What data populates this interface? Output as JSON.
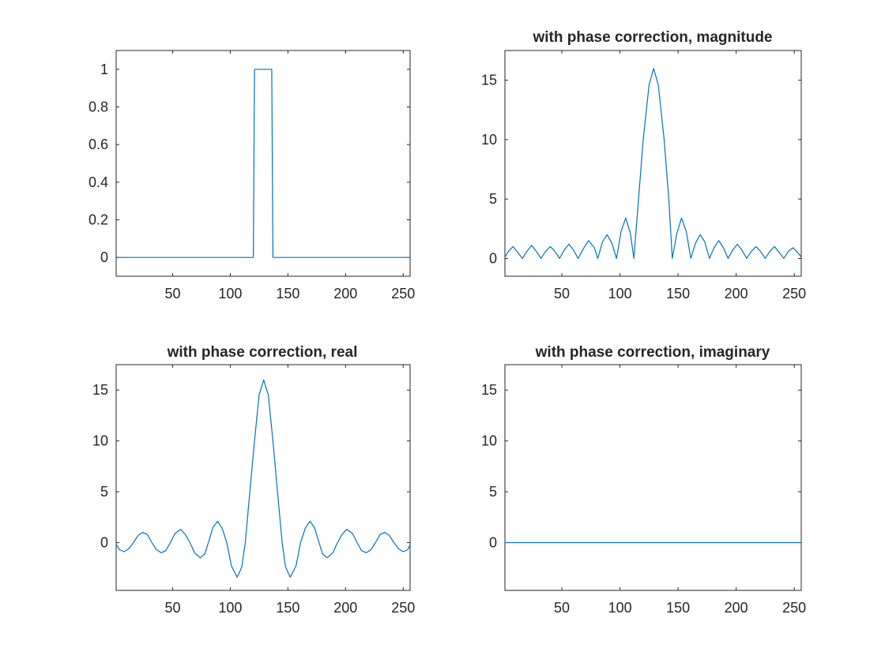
{
  "figure": {
    "background": "#ffffff",
    "line_color": "#0072bd",
    "axes_color": "#262626"
  },
  "chart_data": [
    {
      "type": "line",
      "title": "",
      "xlabel": "",
      "ylabel": "",
      "xlim": [
        1,
        256
      ],
      "ylim": [
        -0.1,
        1.1
      ],
      "xticks": [
        50,
        100,
        150,
        200,
        250
      ],
      "yticks": [
        0,
        0.2,
        0.4,
        0.6,
        0.8,
        1
      ],
      "xtick_labels": [
        "50",
        "100",
        "150",
        "200",
        "250"
      ],
      "ytick_labels": [
        "0",
        "0.2",
        "0.4",
        "0.6",
        "0.8",
        "1"
      ],
      "grid": false,
      "series": [
        {
          "values": [
            [
              1,
              0
            ],
            [
              120,
              0
            ],
            [
              121,
              1
            ],
            [
              136,
              1
            ],
            [
              137,
              0
            ],
            [
              256,
              0
            ]
          ]
        }
      ]
    },
    {
      "type": "line",
      "title": "with phase correction, magnitude",
      "xlabel": "",
      "ylabel": "",
      "xlim": [
        1,
        256
      ],
      "ylim": [
        -1.5,
        17.5
      ],
      "xticks": [
        50,
        100,
        150,
        200,
        250
      ],
      "yticks": [
        0,
        5,
        10,
        15
      ],
      "xtick_labels": [
        "50",
        "100",
        "150",
        "200",
        "250"
      ],
      "ytick_labels": [
        "0",
        "5",
        "10",
        "15"
      ],
      "grid": false,
      "series": [
        {
          "values": [
            [
              1,
              0.1
            ],
            [
              4,
              0.6
            ],
            [
              8,
              1.0
            ],
            [
              12,
              0.5
            ],
            [
              16,
              0
            ],
            [
              20,
              0.6
            ],
            [
              24,
              1.1
            ],
            [
              28,
              0.6
            ],
            [
              32,
              0
            ],
            [
              36,
              0.6
            ],
            [
              40,
              1.0
            ],
            [
              44,
              0.6
            ],
            [
              48,
              0
            ],
            [
              52,
              0.7
            ],
            [
              56,
              1.2
            ],
            [
              60,
              0.7
            ],
            [
              64,
              0
            ],
            [
              69,
              0.9
            ],
            [
              73,
              1.5
            ],
            [
              78,
              0.9
            ],
            [
              81,
              0
            ],
            [
              85,
              1.4
            ],
            [
              89,
              2.0
            ],
            [
              93,
              1.3
            ],
            [
              97,
              0
            ],
            [
              101,
              2.3
            ],
            [
              105,
              3.4
            ],
            [
              109,
              2.1
            ],
            [
              112,
              0
            ],
            [
              116,
              5.0
            ],
            [
              120,
              10.0
            ],
            [
              125,
              14.6
            ],
            [
              129,
              16.0
            ],
            [
              133,
              14.6
            ],
            [
              138,
              10.0
            ],
            [
              142,
              5.0
            ],
            [
              145,
              0
            ],
            [
              149,
              2.1
            ],
            [
              153,
              3.4
            ],
            [
              157,
              2.3
            ],
            [
              161,
              0
            ],
            [
              165,
              1.3
            ],
            [
              169,
              2.0
            ],
            [
              173,
              1.4
            ],
            [
              177,
              0
            ],
            [
              181,
              0.9
            ],
            [
              185,
              1.5
            ],
            [
              189,
              0.9
            ],
            [
              193,
              0
            ],
            [
              197,
              0.7
            ],
            [
              201,
              1.2
            ],
            [
              205,
              0.7
            ],
            [
              209,
              0
            ],
            [
              213,
              0.6
            ],
            [
              217,
              1.0
            ],
            [
              221,
              0.6
            ],
            [
              225,
              0
            ],
            [
              229,
              0.6
            ],
            [
              233,
              1.0
            ],
            [
              237,
              0.5
            ],
            [
              241,
              0
            ],
            [
              245,
              0.6
            ],
            [
              249,
              0.9
            ],
            [
              253,
              0.5
            ],
            [
              256,
              0.1
            ]
          ]
        }
      ]
    },
    {
      "type": "line",
      "title": "with phase correction, real",
      "xlabel": "",
      "ylabel": "",
      "xlim": [
        1,
        256
      ],
      "ylim": [
        -4.7,
        17.5
      ],
      "xticks": [
        50,
        100,
        150,
        200,
        250
      ],
      "yticks": [
        0,
        5,
        10,
        15
      ],
      "xtick_labels": [
        "50",
        "100",
        "150",
        "200",
        "250"
      ],
      "ytick_labels": [
        "0",
        "5",
        "10",
        "15"
      ],
      "grid": false,
      "series": [
        {
          "values": [
            [
              1,
              -0.2
            ],
            [
              4,
              -0.7
            ],
            [
              8,
              -0.9
            ],
            [
              12,
              -0.6
            ],
            [
              16,
              0
            ],
            [
              20,
              0.7
            ],
            [
              24,
              1.0
            ],
            [
              28,
              0.8
            ],
            [
              32,
              0
            ],
            [
              36,
              -0.7
            ],
            [
              40,
              -1.0
            ],
            [
              44,
              -0.8
            ],
            [
              48,
              0
            ],
            [
              52,
              0.9
            ],
            [
              57,
              1.3
            ],
            [
              61,
              0.8
            ],
            [
              65,
              0
            ],
            [
              69,
              -1.0
            ],
            [
              74,
              -1.5
            ],
            [
              78,
              -1.1
            ],
            [
              81,
              0
            ],
            [
              85,
              1.5
            ],
            [
              89,
              2.1
            ],
            [
              93,
              1.4
            ],
            [
              97,
              0
            ],
            [
              101,
              -2.3
            ],
            [
              106,
              -3.4
            ],
            [
              110,
              -2.4
            ],
            [
              113,
              0
            ],
            [
              117,
              5.0
            ],
            [
              121,
              10.0
            ],
            [
              125,
              14.5
            ],
            [
              129,
              16.0
            ],
            [
              133,
              14.5
            ],
            [
              137,
              10.0
            ],
            [
              141,
              5.0
            ],
            [
              145,
              0
            ],
            [
              148,
              -2.4
            ],
            [
              152,
              -3.4
            ],
            [
              157,
              -2.3
            ],
            [
              161,
              0
            ],
            [
              165,
              1.4
            ],
            [
              169,
              2.1
            ],
            [
              173,
              1.5
            ],
            [
              177,
              0
            ],
            [
              180,
              -1.1
            ],
            [
              184,
              -1.5
            ],
            [
              189,
              -1.0
            ],
            [
              193,
              0
            ],
            [
              197,
              0.8
            ],
            [
              201,
              1.3
            ],
            [
              206,
              0.9
            ],
            [
              210,
              0
            ],
            [
              214,
              -0.8
            ],
            [
              218,
              -1.0
            ],
            [
              222,
              -0.7
            ],
            [
              226,
              0
            ],
            [
              230,
              0.8
            ],
            [
              234,
              1.0
            ],
            [
              238,
              0.7
            ],
            [
              242,
              0
            ],
            [
              246,
              -0.6
            ],
            [
              250,
              -0.9
            ],
            [
              254,
              -0.7
            ],
            [
              256,
              -0.2
            ]
          ]
        }
      ]
    },
    {
      "type": "line",
      "title": "with phase correction, imaginary",
      "xlabel": "",
      "ylabel": "",
      "xlim": [
        1,
        256
      ],
      "ylim": [
        -4.7,
        17.5
      ],
      "xticks": [
        50,
        100,
        150,
        200,
        250
      ],
      "yticks": [
        0,
        5,
        10,
        15
      ],
      "xtick_labels": [
        "50",
        "100",
        "150",
        "200",
        "250"
      ],
      "ytick_labels": [
        "0",
        "5",
        "10",
        "15"
      ],
      "grid": false,
      "series": [
        {
          "values": [
            [
              1,
              0
            ],
            [
              256,
              0
            ]
          ]
        }
      ]
    }
  ]
}
